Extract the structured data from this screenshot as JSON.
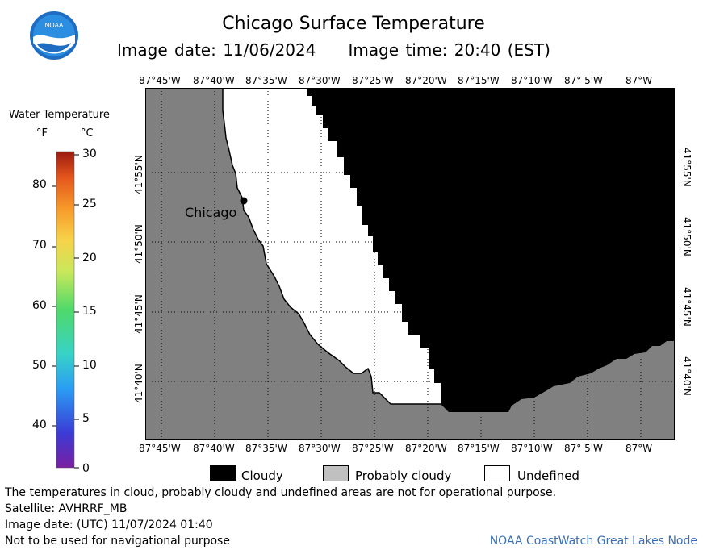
{
  "header": {
    "title": "Chicago Surface Temperature",
    "image_date": "Image date: 11/06/2024",
    "image_time": "Image time: 20:40 (EST)"
  },
  "map": {
    "place_label": "Chicago",
    "longitude_labels": [
      "87°45'W",
      "87°40'W",
      "87°35'W",
      "87°30'W",
      "87°25'W",
      "87°20'W",
      "87°15'W",
      "87°10'W",
      "87° 5'W",
      "87°W"
    ],
    "latitude_labels": [
      "41°55'N",
      "41°50'N",
      "41°45'N",
      "41°40'N"
    ],
    "colors": {
      "land": "#808080",
      "cloudy": "#000000",
      "undefined": "#ffffff",
      "probably_cloudy": "#c0c0c0",
      "grid": "#000000"
    }
  },
  "legend": {
    "title": "Water Temperature",
    "unit_f": "°F",
    "unit_c": "°C",
    "f_ticks": [
      "80",
      "70",
      "60",
      "50",
      "40"
    ],
    "c_ticks": [
      "30",
      "25",
      "20",
      "15",
      "10",
      "5",
      "0"
    ],
    "scale_colors": [
      "#7a1fa2",
      "#3b3bd6",
      "#2a9df4",
      "#37d3c6",
      "#4fd96a",
      "#c9e85a",
      "#f7d34a",
      "#f79a2a",
      "#e4541c",
      "#9a1a10"
    ]
  },
  "key": {
    "cloudy": "Cloudy",
    "probably_cloudy": "Probably cloudy",
    "undefined": "Undefined"
  },
  "footer": {
    "note": "The temperatures in cloud, probably cloudy and undefined areas are not for operational purpose.",
    "satellite": "Satellite: AVHRRF_MB",
    "utc_date": "Image date: (UTC) 11/07/2024  01:40",
    "nav_warning": "Not to be used for navigational purpose",
    "node": "NOAA CoastWatch Great Lakes Node"
  }
}
